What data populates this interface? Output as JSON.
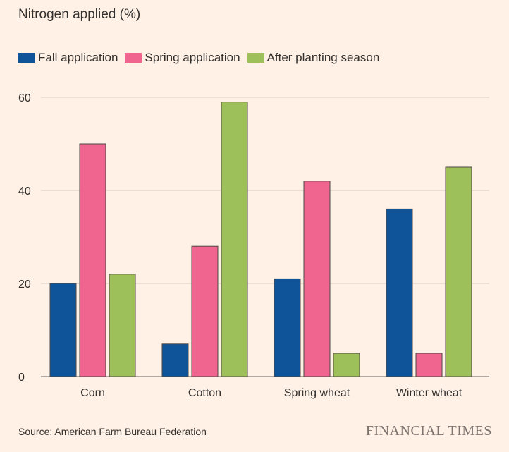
{
  "chart_data": {
    "type": "bar",
    "title": "Nitrogen applied (%)",
    "categories": [
      "Corn",
      "Cotton",
      "Spring wheat",
      "Winter wheat"
    ],
    "series": [
      {
        "name": "Fall application",
        "color": "#0f5499",
        "values": [
          20,
          7,
          21,
          36
        ]
      },
      {
        "name": "Spring application",
        "color": "#f06590",
        "values": [
          50,
          28,
          42,
          5
        ]
      },
      {
        "name": "After planting season",
        "color": "#9dc05a",
        "values": [
          22,
          59,
          5,
          45
        ]
      }
    ],
    "ylim": [
      0,
      60
    ],
    "yticks": [
      0,
      20,
      40,
      60
    ],
    "xlabel": "",
    "ylabel": "",
    "grid": true,
    "legend_position": "top-left"
  },
  "footer": {
    "source_prefix": "Source: ",
    "source_link": "American Farm Bureau Federation",
    "brand": "FINANCIAL TIMES"
  }
}
